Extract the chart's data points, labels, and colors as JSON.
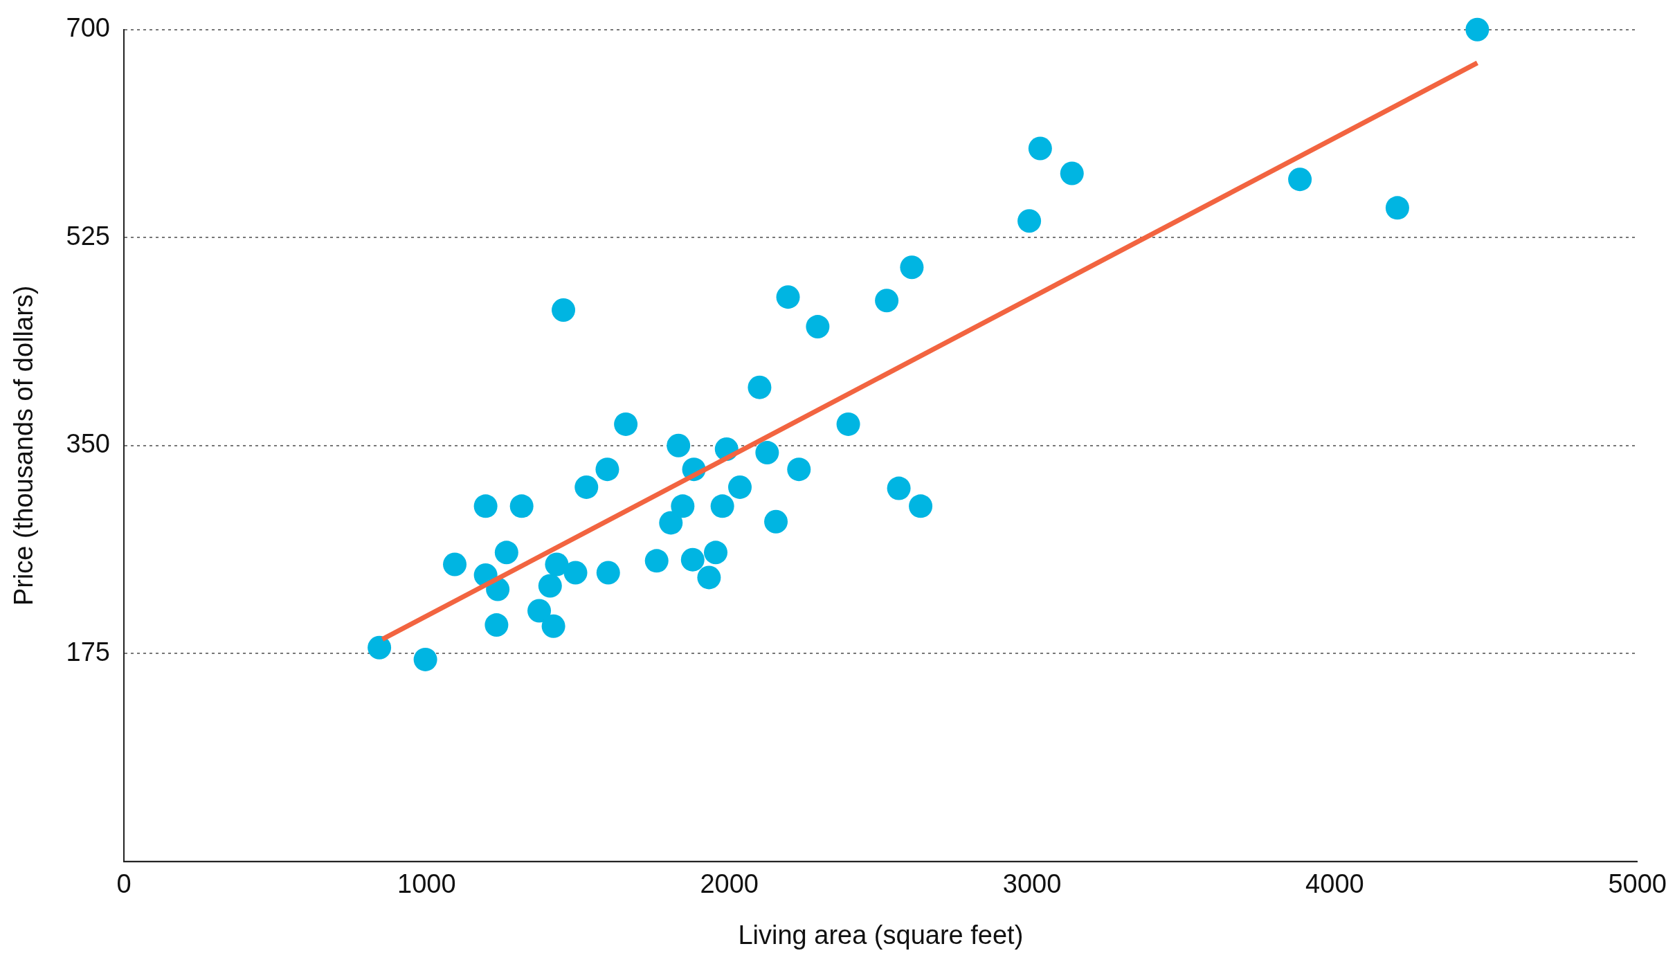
{
  "chart_data": {
    "type": "scatter",
    "xlabel": "Living area (square feet)",
    "ylabel": "Price (thousands of dollars)",
    "xlim": [
      0,
      5000
    ],
    "xticks": [
      0,
      1000,
      2000,
      3000,
      4000,
      5000
    ],
    "ylim": [
      0,
      700
    ],
    "yticks": [
      175,
      350,
      525,
      700
    ],
    "grid": "y",
    "legend": false,
    "series": [
      {
        "marker": "circle",
        "color": "#00b5e2",
        "x": [
          844,
          996,
          1093,
          1195,
          1195,
          1235,
          1231,
          1264,
          1314,
          1372,
          1408,
          1419,
          1430,
          1452,
          1492,
          1528,
          1597,
          1600,
          1658,
          1760,
          1807,
          1832,
          1846,
          1879,
          1883,
          1933,
          1955,
          1977,
          1991,
          2035,
          2100,
          2125,
          2154,
          2194,
          2230,
          2292,
          2393,
          2520,
          2560,
          2603,
          2632,
          2991,
          3027,
          3132,
          3885,
          4207,
          4471
        ],
        "values": [
          180,
          170,
          250,
          299,
          241,
          229,
          199,
          260,
          299,
          211,
          232,
          198,
          250,
          464,
          243,
          315,
          330,
          243,
          368,
          253,
          285,
          350,
          299,
          254,
          330,
          239,
          260,
          299,
          347,
          315,
          399,
          344,
          286,
          475,
          330,
          450,
          368,
          472,
          314,
          500,
          299,
          539,
          600,
          579,
          574,
          550,
          700
        ]
      },
      {
        "type": "line",
        "marker": "none",
        "color": "#f26440",
        "x": [
          854,
          4471
        ],
        "values": [
          187,
          672
        ]
      }
    ]
  }
}
